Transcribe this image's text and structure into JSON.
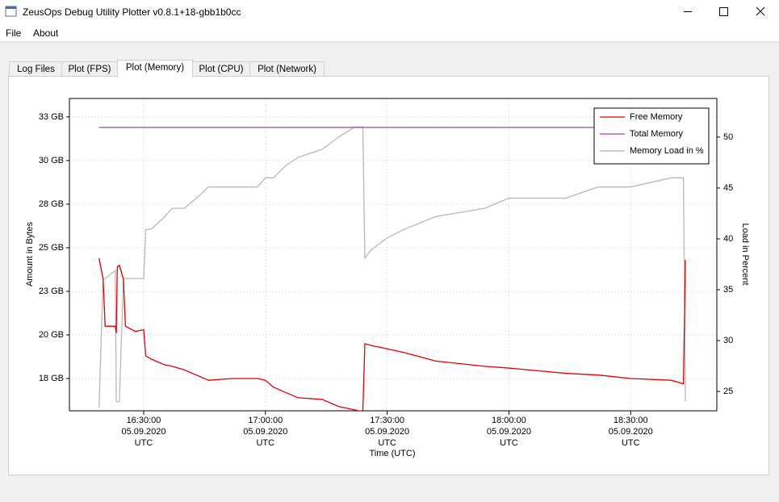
{
  "window": {
    "title": "ZeusOps Debug Utility Plotter v0.8.1+18-gbb1b0cc"
  },
  "menu": [
    "File",
    "About"
  ],
  "tabs": [
    "Log Files",
    "Plot (FPS)",
    "Plot (Memory)",
    "Plot (CPU)",
    "Plot (Network)"
  ],
  "active_tab": 2,
  "chart_data": {
    "type": "line",
    "xlabel": "Time (UTC)",
    "ylabel": "Amount in Bytes",
    "y2label": "Load in Percent",
    "grid": true,
    "legend": "upper right",
    "xlim": [
      "2020-09-05 16:11:42",
      "2020-09-05 18:51:14"
    ],
    "xticks": [
      {
        "value": "2020-09-05 16:30:00",
        "label": "16:30:00\n05.09.2020\nUTC"
      },
      {
        "value": "2020-09-05 17:00:00",
        "label": "17:00:00\n05.09.2020\nUTC"
      },
      {
        "value": "2020-09-05 17:30:00",
        "label": "17:30:00\n05.09.2020\nUTC"
      },
      {
        "value": "2020-09-05 18:00:00",
        "label": "18:00:00\n05.09.2020\nUTC"
      },
      {
        "value": "2020-09-05 18:30:00",
        "label": "18:30:00\n05.09.2020\nUTC"
      }
    ],
    "ylim": [
      15.65,
      33.56
    ],
    "yticks": [
      {
        "value": 17.5,
        "label": "18 GB"
      },
      {
        "value": 20,
        "label": "20 GB"
      },
      {
        "value": 22.5,
        "label": "23 GB"
      },
      {
        "value": 25,
        "label": "25 GB"
      },
      {
        "value": 27.5,
        "label": "28 GB"
      },
      {
        "value": 30,
        "label": "30 GB"
      },
      {
        "value": 32.5,
        "label": "33 GB"
      }
    ],
    "y2lim": [
      23.1,
      53.8
    ],
    "y2ticks": [
      25,
      30,
      35,
      40,
      45,
      50
    ],
    "x": [
      "2020-09-05 16:19:00",
      "2020-09-05 16:20:00",
      "2020-09-05 16:20:30",
      "2020-09-05 16:23:00",
      "2020-09-05 16:23:15",
      "2020-09-05 16:23:30",
      "2020-09-05 16:24:00",
      "2020-09-05 16:25:00",
      "2020-09-05 16:25:30",
      "2020-09-05 16:28:00",
      "2020-09-05 16:30:00",
      "2020-09-05 16:30:30",
      "2020-09-05 16:32:00",
      "2020-09-05 16:35:00",
      "2020-09-05 16:37:00",
      "2020-09-05 16:40:00",
      "2020-09-05 16:43:00",
      "2020-09-05 16:46:00",
      "2020-09-05 16:52:00",
      "2020-09-05 16:58:00",
      "2020-09-05 17:00:00",
      "2020-09-05 17:02:00",
      "2020-09-05 17:05:00",
      "2020-09-05 17:08:00",
      "2020-09-05 17:14:00",
      "2020-09-05 17:18:00",
      "2020-09-05 17:22:00",
      "2020-09-05 17:24:00",
      "2020-09-05 17:24:30",
      "2020-09-05 17:26:00",
      "2020-09-05 17:30:00",
      "2020-09-05 17:34:00",
      "2020-09-05 17:42:00",
      "2020-09-05 17:54:00",
      "2020-09-05 18:00:00",
      "2020-09-05 18:14:00",
      "2020-09-05 18:22:00",
      "2020-09-05 18:30:00",
      "2020-09-05 18:40:00",
      "2020-09-05 18:43:00",
      "2020-09-05 18:43:30"
    ],
    "series": [
      {
        "name": "Free Memory",
        "color": "#e00000",
        "axis": "y",
        "values": [
          24.4,
          23.2,
          20.5,
          20.5,
          20.1,
          23.9,
          24.0,
          23.2,
          20.5,
          20.2,
          20.3,
          18.8,
          18.6,
          18.3,
          18.2,
          18.0,
          17.7,
          17.4,
          17.5,
          17.5,
          17.4,
          17.0,
          16.7,
          16.4,
          16.3,
          15.9,
          15.7,
          15.6,
          19.5,
          19.4,
          19.2,
          19.0,
          18.5,
          18.2,
          18.1,
          17.8,
          17.7,
          17.5,
          17.4,
          17.2,
          24.3
        ]
      },
      {
        "name": "Total Memory",
        "color": "#a040b0",
        "axis": "y",
        "values": [
          31.9,
          31.9,
          31.9,
          31.9,
          31.9,
          31.9,
          31.9,
          31.9,
          31.9,
          31.9,
          31.9,
          31.9,
          31.9,
          31.9,
          31.9,
          31.9,
          31.9,
          31.9,
          31.9,
          31.9,
          31.9,
          31.9,
          31.9,
          31.9,
          31.9,
          31.9,
          31.9,
          31.9,
          31.9,
          31.9,
          31.9,
          31.9,
          31.9,
          31.9,
          31.9,
          31.9,
          31.9,
          31.9,
          31.9,
          31.9,
          31.9
        ]
      },
      {
        "name": "Memory Load in %",
        "color": "#b8b8b8",
        "axis": "y2",
        "values": [
          23.4,
          36.1,
          36.1,
          36.9,
          24.0,
          24.0,
          24.0,
          36.1,
          36.1,
          36.1,
          36.1,
          40.9,
          41.0,
          42.1,
          43.0,
          43.0,
          44.0,
          45.1,
          45.1,
          45.1,
          46.0,
          46.0,
          47.2,
          48.0,
          48.8,
          50.0,
          51.0,
          51.0,
          38.1,
          38.9,
          40.1,
          40.9,
          42.2,
          43.0,
          44.0,
          44.0,
          45.1,
          45.1,
          46.0,
          46.0,
          24.0
        ]
      }
    ]
  }
}
